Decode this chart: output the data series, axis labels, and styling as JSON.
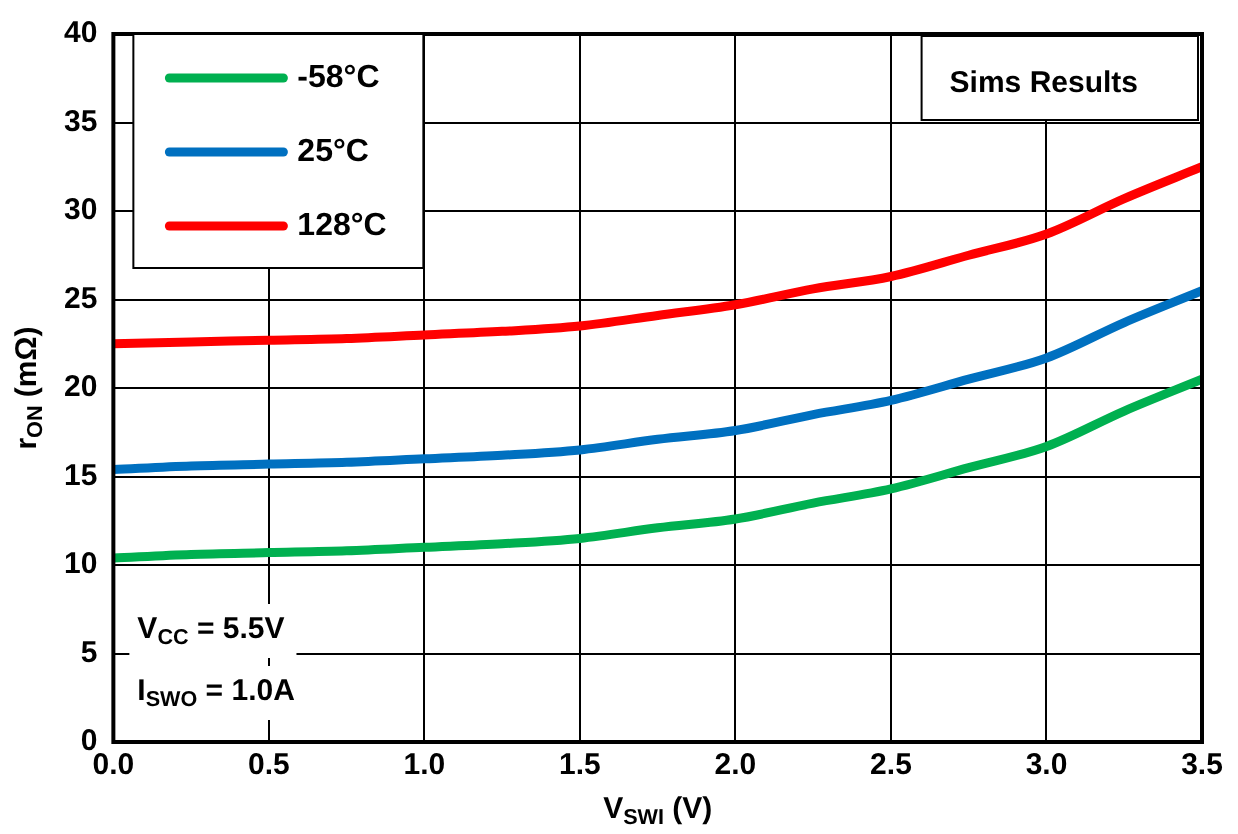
{
  "chart_data": {
    "type": "line",
    "xlabel": "V$_{SWI}$ (V)",
    "ylabel": "r$_{ON}$ (mΩ)",
    "x": [
      0,
      0.25,
      0.5,
      0.75,
      1.0,
      1.25,
      1.5,
      1.75,
      2.0,
      2.25,
      2.5,
      2.75,
      3.0,
      3.25,
      3.5
    ],
    "series": [
      {
        "name": "-58°C",
        "color": "#00b050",
        "values": [
          10.4,
          10.6,
          10.7,
          10.8,
          11.0,
          11.2,
          11.5,
          12.1,
          12.6,
          13.5,
          14.3,
          15.5,
          16.7,
          18.7,
          20.5
        ]
      },
      {
        "name": "25°C",
        "color": "#0070c0",
        "values": [
          15.4,
          15.6,
          15.7,
          15.8,
          16.0,
          16.2,
          16.5,
          17.1,
          17.6,
          18.5,
          19.3,
          20.5,
          21.7,
          23.7,
          25.5
        ]
      },
      {
        "name": "128°C",
        "color": "#ff0000",
        "values": [
          22.5,
          22.6,
          22.7,
          22.8,
          23.0,
          23.2,
          23.5,
          24.1,
          24.7,
          25.6,
          26.3,
          27.5,
          28.7,
          30.7,
          32.5
        ]
      }
    ],
    "xlim": [
      0,
      3.5
    ],
    "xticks": [
      {
        "value": 0,
        "label": "0.0"
      },
      {
        "value": 0.5,
        "label": "0.5"
      },
      {
        "value": 1,
        "label": "1.0"
      },
      {
        "value": 1.5,
        "label": "1.5"
      },
      {
        "value": 2,
        "label": "2.0"
      },
      {
        "value": 2.5,
        "label": "2.5"
      },
      {
        "value": 3,
        "label": "3.0"
      },
      {
        "value": 3.5,
        "label": "3.5"
      }
    ],
    "ylim": [
      0,
      40
    ],
    "yticks": [
      0,
      5,
      10,
      15,
      20,
      25,
      30,
      35,
      40
    ],
    "grid": true,
    "legend": "top left",
    "marker": "none",
    "line_style": "solid",
    "annotations": [
      "Sims Results",
      "V$_{CC}$ = 5.5V",
      "I$_{SWO}$ = 1.0A"
    ]
  }
}
